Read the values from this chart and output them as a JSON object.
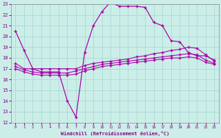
{
  "xlabel": "Windchill (Refroidissement éolien,°C)",
  "bg_color": "#cceee8",
  "grid_color": "#aad8d2",
  "line_color": "#aa00aa",
  "xlim": [
    -0.5,
    23.5
  ],
  "ylim": [
    12,
    23
  ],
  "xticks": [
    0,
    1,
    2,
    3,
    4,
    5,
    6,
    7,
    8,
    9,
    10,
    11,
    12,
    13,
    14,
    15,
    16,
    17,
    18,
    19,
    20,
    21,
    22,
    23
  ],
  "yticks": [
    12,
    13,
    14,
    15,
    16,
    17,
    18,
    19,
    20,
    21,
    22,
    23
  ],
  "s1_x": [
    0,
    1,
    2,
    3,
    4,
    5,
    6,
    7,
    8,
    9,
    10,
    11,
    12,
    13,
    14,
    15,
    16,
    17,
    18,
    19,
    20,
    21,
    22,
    23
  ],
  "s1_y": [
    20.5,
    18.7,
    17.0,
    16.7,
    16.7,
    16.7,
    14.0,
    12.5,
    18.5,
    21.0,
    22.3,
    23.2,
    22.8,
    22.8,
    22.8,
    22.7,
    21.3,
    21.0,
    19.6,
    19.5,
    18.5,
    18.2,
    18.2,
    17.8
  ],
  "s2_x": [
    0,
    1,
    2,
    3,
    4,
    5,
    6,
    7,
    8,
    9,
    10,
    11,
    12,
    13,
    14,
    15,
    16,
    17,
    18,
    19,
    20,
    21,
    22,
    23
  ],
  "s2_y": [
    17.5,
    17.0,
    17.0,
    17.0,
    17.0,
    17.0,
    17.0,
    17.0,
    17.3,
    17.5,
    17.6,
    17.7,
    17.8,
    17.9,
    18.1,
    18.2,
    18.4,
    18.5,
    18.7,
    18.8,
    19.0,
    18.9,
    18.3,
    17.7
  ],
  "s3_x": [
    0,
    1,
    2,
    3,
    4,
    5,
    6,
    7,
    8,
    9,
    10,
    11,
    12,
    13,
    14,
    15,
    16,
    17,
    18,
    19,
    20,
    21,
    22,
    23
  ],
  "s3_y": [
    17.2,
    16.9,
    16.7,
    16.6,
    16.6,
    16.6,
    16.6,
    16.8,
    17.0,
    17.2,
    17.4,
    17.5,
    17.6,
    17.7,
    17.8,
    17.9,
    18.0,
    18.1,
    18.2,
    18.3,
    18.4,
    18.3,
    17.8,
    17.5
  ],
  "s4_x": [
    0,
    1,
    2,
    3,
    4,
    5,
    6,
    7,
    8,
    9,
    10,
    11,
    12,
    13,
    14,
    15,
    16,
    17,
    18,
    19,
    20,
    21,
    22,
    23
  ],
  "s4_y": [
    17.0,
    16.7,
    16.5,
    16.4,
    16.4,
    16.4,
    16.4,
    16.5,
    16.8,
    17.0,
    17.2,
    17.3,
    17.4,
    17.5,
    17.6,
    17.7,
    17.8,
    17.9,
    18.0,
    18.0,
    18.1,
    18.0,
    17.6,
    17.4
  ]
}
